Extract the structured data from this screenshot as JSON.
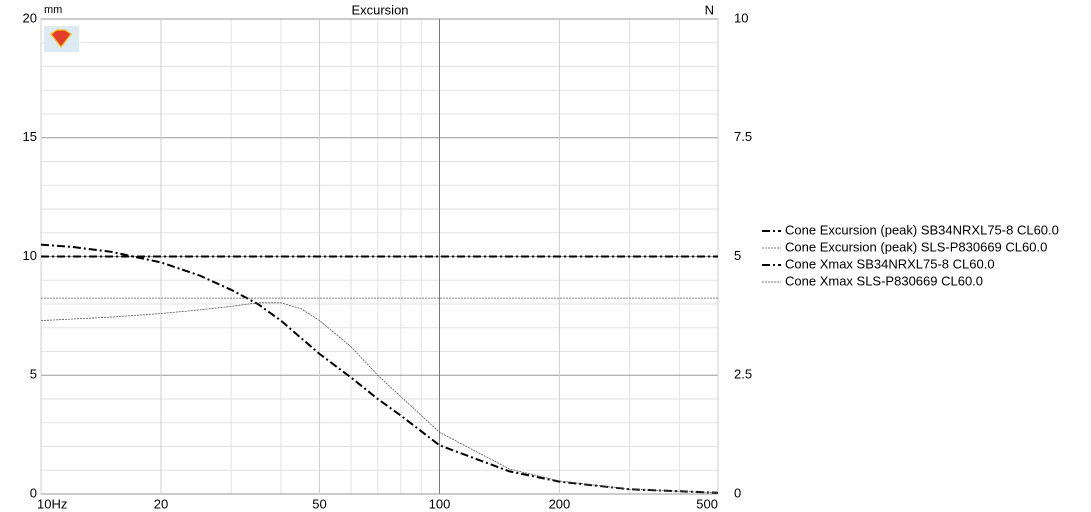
{
  "chart_data": {
    "type": "line",
    "title": "Excursion",
    "ylabel": "mm",
    "y2label": "N",
    "xscale": "log",
    "xlim": [
      10,
      500
    ],
    "ylim": [
      0,
      20
    ],
    "y2lim": [
      0,
      10
    ],
    "xticks": [
      {
        "value": 10,
        "label": "10Hz"
      },
      20,
      50,
      100,
      200,
      500
    ],
    "xminor": [
      30,
      40,
      60,
      70,
      80,
      90,
      300,
      400
    ],
    "yticks": [
      0,
      5,
      10,
      15,
      20
    ],
    "yminor": [
      1,
      2,
      3,
      4,
      6,
      7,
      8,
      9,
      11,
      12,
      13,
      14,
      16,
      17,
      18,
      19
    ],
    "y2ticks": [
      0,
      2.5,
      5,
      7.5,
      10
    ],
    "grid": true,
    "legend": "right",
    "series": [
      {
        "name": "Cone Excursion (peak) SB34NRXL75-8 CL60.0",
        "color": "#000000",
        "style": "dashdot",
        "x": [
          10,
          12,
          15,
          20,
          25,
          30,
          35,
          40,
          50,
          60,
          70,
          80,
          100,
          150,
          200,
          300,
          500
        ],
        "values": [
          10.5,
          10.4,
          10.2,
          9.75,
          9.2,
          8.6,
          8.0,
          7.3,
          5.9,
          4.9,
          4.0,
          3.3,
          2.05,
          0.95,
          0.52,
          0.2,
          0.05
        ]
      },
      {
        "name": "Cone Excursion (peak) SLS-P830669 CL60.0",
        "color": "#555555",
        "style": "dotted",
        "x": [
          10,
          15,
          20,
          25,
          30,
          35,
          40,
          45,
          50,
          60,
          70,
          80,
          100,
          150,
          200,
          300,
          500
        ],
        "values": [
          7.3,
          7.45,
          7.6,
          7.75,
          7.9,
          8.05,
          8.05,
          7.8,
          7.3,
          6.2,
          5.0,
          4.1,
          2.6,
          1.05,
          0.55,
          0.2,
          0.05
        ]
      },
      {
        "name": "Cone Xmax SB34NRXL75-8 CL60.0",
        "color": "#000000",
        "style": "dashdot",
        "x": [
          10,
          500
        ],
        "values": [
          10,
          10
        ]
      },
      {
        "name": "Cone Xmax SLS-P830669 CL60.0",
        "color": "#555555",
        "style": "dotted",
        "x": [
          10,
          500
        ],
        "values": [
          8.25,
          8.25
        ]
      }
    ]
  }
}
